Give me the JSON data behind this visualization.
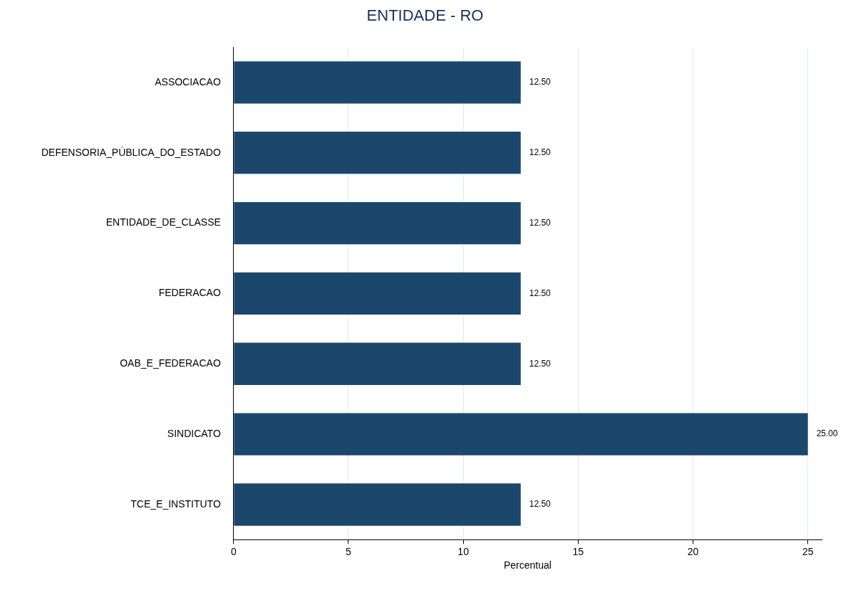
{
  "chart_data": {
    "type": "bar",
    "orientation": "horizontal",
    "title": "ENTIDADE - RO",
    "xlabel": "Percentual",
    "categories": [
      "ASSOCIACAO",
      "DEFENSORIA_PÚBLICA_DO_ESTADO",
      "ENTIDADE_DE_CLASSE",
      "FEDERACAO",
      "OAB_E_FEDERACAO",
      "SINDICATO",
      "TCE_E_INSTITUTO"
    ],
    "values": [
      12.5,
      12.5,
      12.5,
      12.5,
      12.5,
      25,
      12.5
    ],
    "value_labels": [
      "12.50",
      "12.50",
      "12.50",
      "12.50",
      "12.50",
      "25.00",
      "12.50"
    ],
    "color": "#1c476d",
    "xlim": [
      0,
      25.6
    ],
    "xticks": [
      0,
      5,
      10,
      15,
      20,
      25
    ],
    "grid": "x",
    "legend": false
  }
}
